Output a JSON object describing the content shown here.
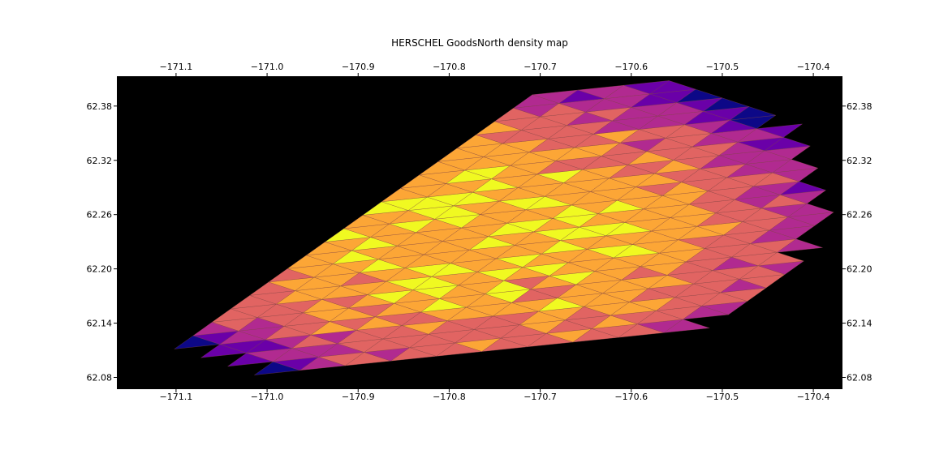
{
  "chart_data": {
    "type": "heatmap",
    "title": "HERSCHEL GoodsNorth density map",
    "xlabel": "",
    "ylabel": "",
    "xlim": [
      -171.165,
      -170.368
    ],
    "ylim": [
      62.067,
      62.413
    ],
    "x_ticks": [
      {
        "value": -171.1,
        "label": "−171.1"
      },
      {
        "value": -171.0,
        "label": "−171.0"
      },
      {
        "value": -170.9,
        "label": "−170.9"
      },
      {
        "value": -170.8,
        "label": "−170.8"
      },
      {
        "value": -170.7,
        "label": "−170.7"
      },
      {
        "value": -170.6,
        "label": "−170.6"
      },
      {
        "value": -170.5,
        "label": "−170.5"
      },
      {
        "value": -170.4,
        "label": "−170.4"
      }
    ],
    "y_ticks": [
      {
        "value": 62.08,
        "label": "62.08"
      },
      {
        "value": 62.14,
        "label": "62.14"
      },
      {
        "value": 62.2,
        "label": "62.20"
      },
      {
        "value": 62.26,
        "label": "62.26"
      },
      {
        "value": 62.32,
        "label": "62.32"
      },
      {
        "value": 62.38,
        "label": "62.38"
      }
    ],
    "ticks_on_all_sides": true,
    "grid": false,
    "colormap": "plasma",
    "background_color": "#000000",
    "mesh": {
      "lon_step": 0.05,
      "lat_step": 0.0148,
      "lat_origin": 62.067,
      "row_shift": 0.0207,
      "col_shear": 0.0052,
      "lon_origin": -171.164,
      "rows": 22,
      "cols": 17
    },
    "region": {
      "lon_center": -170.77,
      "lat_center": 62.245,
      "lon_half_width": 0.38,
      "lat_half_height": 0.165
    },
    "density_center": {
      "lon": -170.77,
      "lat": 62.24
    }
  }
}
